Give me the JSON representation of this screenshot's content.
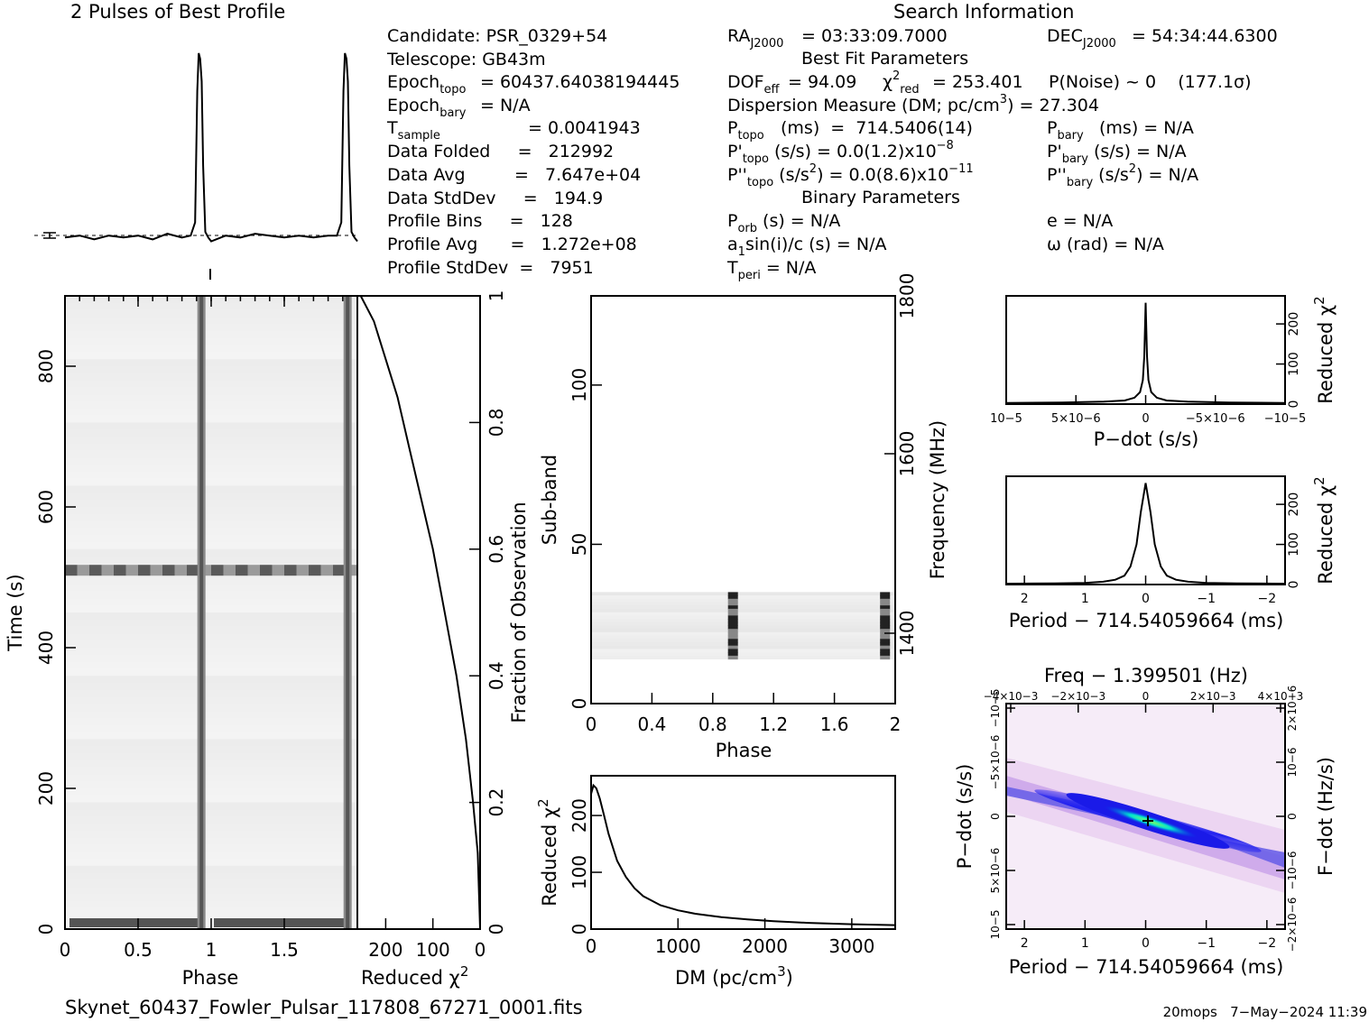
{
  "header": {
    "profile_title": "2 Pulses of Best Profile",
    "search_title": "Search Information",
    "filename": "Skynet_60437_Fowler_Pulsar_117808_67271_0001.fits",
    "footer_right": "20mops   7−May−2024 11:39"
  },
  "info": {
    "candidate": "Candidate:   PSR_0329+54",
    "telescope": "Telescope:   GB43m",
    "epoch_topo": "= 60437.64038194445",
    "epoch_bary": "= N/A",
    "t_sample": "=   0.0041943",
    "data_folded": "Data Folded     =   212992",
    "data_avg": "Data Avg         =   7.647e+04",
    "data_stddev": "Data StdDev     =   194.9",
    "profile_bins": "Profile Bins     =   128",
    "profile_avg": "Profile Avg      =   1.272e+08",
    "profile_stddev": "Profile StdDev  =   7951",
    "ra": "= 03:33:09.7000",
    "dec": "= 54:34:44.6300",
    "best_fit": "Best Fit Parameters",
    "dof": "= 94.09",
    "chi2": "= 253.401",
    "pnoise": "P(Noise) ~ 0    (177.1σ)",
    "dm_line": "Dispersion Measure (DM; pc/cm",
    "dm_val": ") = 27.304",
    "p_topo": "(ms)  =  714.5406(14)",
    "p_bary": "(ms) = N/A",
    "pd_topo": "(s/s) = 0.0(1.2)x10",
    "pd_topo_exp": "−8",
    "pd_bary": "(s/s) = N/A",
    "pdd_topo": "(s/s",
    "pdd_topo_tail": ") = 0.0(8.6)x10",
    "pdd_topo_exp": "−11",
    "pdd_bary": "(s/s",
    "pdd_bary_tail": ") = N/A",
    "binary": "Binary Parameters",
    "porb": "(s) = N/A",
    "e": "e = N/A",
    "a1": "sin(i)/c (s) = N/A",
    "omega": "ω (rad) = N/A",
    "tperi": "= N/A"
  },
  "colors": {
    "trace": "#000000",
    "dm_map_hot": "#00e0c0",
    "dm_map_mid": "#1010e0",
    "dm_map_low": "#f0e0f4"
  },
  "chart_data": [
    {
      "type": "line",
      "title": "2 Pulses of Best Profile",
      "x": [
        0,
        0.1,
        0.2,
        0.3,
        0.4,
        0.5,
        0.6,
        0.7,
        0.8,
        0.86,
        0.89,
        0.905,
        0.915,
        0.925,
        0.935,
        0.945,
        0.96,
        0.98,
        1.0,
        1.1,
        1.2,
        1.3,
        1.4,
        1.5,
        1.6,
        1.7,
        1.8,
        1.86,
        1.89,
        1.905,
        1.915,
        1.925,
        1.935,
        1.945,
        1.96,
        1.98,
        2.0
      ],
      "y": [
        0.02,
        0.03,
        0.01,
        0.03,
        0.02,
        0.03,
        0.01,
        0.04,
        0.02,
        0.03,
        0.1,
        0.8,
        1.0,
        0.97,
        0.85,
        0.4,
        0.05,
        0.02,
        0.0,
        0.03,
        0.02,
        0.04,
        0.03,
        0.02,
        0.03,
        0.02,
        0.03,
        0.03,
        0.1,
        0.8,
        1.0,
        0.97,
        0.85,
        0.4,
        0.05,
        0.02,
        0.0
      ],
      "xlim": [
        0,
        2
      ],
      "ylim": [
        -0.06,
        1.1
      ]
    },
    {
      "type": "heatmap",
      "xlabel": "Phase",
      "ylabel": "Time (s)",
      "xticks": [
        "0",
        "0.5",
        "1",
        "1.5"
      ],
      "yticks": [
        "0",
        "200",
        "400",
        "600",
        "800"
      ],
      "xlim": [
        0,
        2
      ],
      "ylim": [
        0,
        900
      ],
      "pulse_phases": [
        0.93,
        1.93
      ]
    },
    {
      "type": "line",
      "xlabel": "Reduced χ2",
      "ylabel": "Fraction of Observation",
      "xticks": [
        "200",
        "100",
        "0"
      ],
      "yticks": [
        "0",
        "0.2",
        "0.4",
        "0.6",
        "0.8",
        "1"
      ],
      "xlim": [
        260,
        0
      ],
      "ylim": [
        0,
        1
      ],
      "x": [
        0,
        5,
        15,
        30,
        50,
        75,
        100,
        125,
        150,
        175,
        200,
        225,
        253
      ],
      "y": [
        0.0,
        0.12,
        0.2,
        0.3,
        0.4,
        0.5,
        0.6,
        0.68,
        0.76,
        0.84,
        0.9,
        0.96,
        1.0
      ]
    },
    {
      "type": "heatmap",
      "xlabel": "Phase",
      "ylabel": "Sub-band",
      "y2label": "Frequency (MHz)",
      "xticks": [
        "0",
        "0.4",
        "0.8",
        "1.2",
        "1.6",
        "2"
      ],
      "yticks": [
        "0",
        "50",
        "100"
      ],
      "y2ticks": [
        "1400",
        "1600",
        "1800"
      ],
      "xlim": [
        0,
        2
      ],
      "ylim": [
        0,
        128
      ],
      "band_rows": [
        14,
        35
      ],
      "pulse_phases": [
        0.93,
        1.93
      ]
    },
    {
      "type": "line",
      "xlabel": "DM (pc/cm3)",
      "ylabel": "Reduced χ2",
      "xticks": [
        "0",
        "1000",
        "2000",
        "3000"
      ],
      "yticks": [
        "0",
        "100",
        "200"
      ],
      "xlim": [
        0,
        3500
      ],
      "ylim": [
        0,
        270
      ],
      "x": [
        0,
        27,
        60,
        100,
        150,
        200,
        300,
        400,
        500,
        600,
        800,
        1000,
        1200,
        1500,
        1800,
        2100,
        2500,
        3000,
        3500
      ],
      "y": [
        238,
        253,
        248,
        230,
        200,
        168,
        120,
        92,
        72,
        58,
        42,
        33,
        27,
        21,
        17,
        14,
        11,
        8.5,
        7
      ]
    },
    {
      "type": "line",
      "xlabel": "P−dot (s/s)",
      "ylabel": "Reduced χ2",
      "xticks": [
        "10−5",
        "5×10−6",
        "0",
        "−5×10−6",
        "−10−5"
      ],
      "yticks": [
        "0",
        "100",
        "200"
      ],
      "xlim": [
        1e-05,
        -1e-05
      ],
      "ylim": [
        0,
        270
      ],
      "x": [
        1e-05,
        6e-06,
        3e-06,
        1.5e-06,
        8e-07,
        4e-07,
        2e-07,
        1e-07,
        0,
        -1e-07,
        -2e-07,
        -4e-07,
        -8e-07,
        -1.5e-06,
        -3e-06,
        -6e-06,
        -1e-05
      ],
      "y": [
        3,
        4,
        6,
        9,
        16,
        30,
        60,
        120,
        253,
        120,
        60,
        30,
        16,
        9,
        6,
        4,
        3
      ]
    },
    {
      "type": "line",
      "xlabel": "Period − 714.54059664 (ms)",
      "ylabel": "Reduced χ2",
      "xticks": [
        "2",
        "1",
        "0",
        "−1",
        "−2"
      ],
      "yticks": [
        "0",
        "100",
        "200"
      ],
      "xlim": [
        2.3,
        -2.3
      ],
      "ylim": [
        0,
        270
      ],
      "x": [
        2.3,
        1.5,
        1.0,
        0.7,
        0.5,
        0.35,
        0.25,
        0.15,
        0.08,
        0,
        -0.08,
        -0.15,
        -0.25,
        -0.35,
        -0.5,
        -0.7,
        -1.0,
        -1.5,
        -2.3
      ],
      "y": [
        2,
        3,
        4,
        7,
        12,
        22,
        45,
        100,
        180,
        253,
        180,
        100,
        45,
        22,
        12,
        7,
        4,
        3,
        2
      ]
    },
    {
      "type": "heatmap",
      "title": "Freq − 1.399501 (Hz)",
      "xlabel": "Period − 714.54059664 (ms)",
      "ylabel": "P−dot (s/s)",
      "y2label": "F−dot (Hz/s)",
      "xticks": [
        "2",
        "1",
        "0",
        "−1",
        "−2"
      ],
      "x2ticks": [
        "−4×10−3",
        "−2×10−3",
        "0",
        "2×10−3",
        "4×10−3"
      ],
      "yticks": [
        "10−5",
        "5×10−6",
        "0",
        "−5×10−6",
        "−10−5"
      ],
      "y2ticks": [
        "−2×10−6",
        "−10−6",
        "0",
        "10−6",
        "2×10−6"
      ],
      "xlim": [
        2.3,
        -2.3
      ],
      "ylim": [
        1e-05,
        -1e-05
      ]
    }
  ]
}
